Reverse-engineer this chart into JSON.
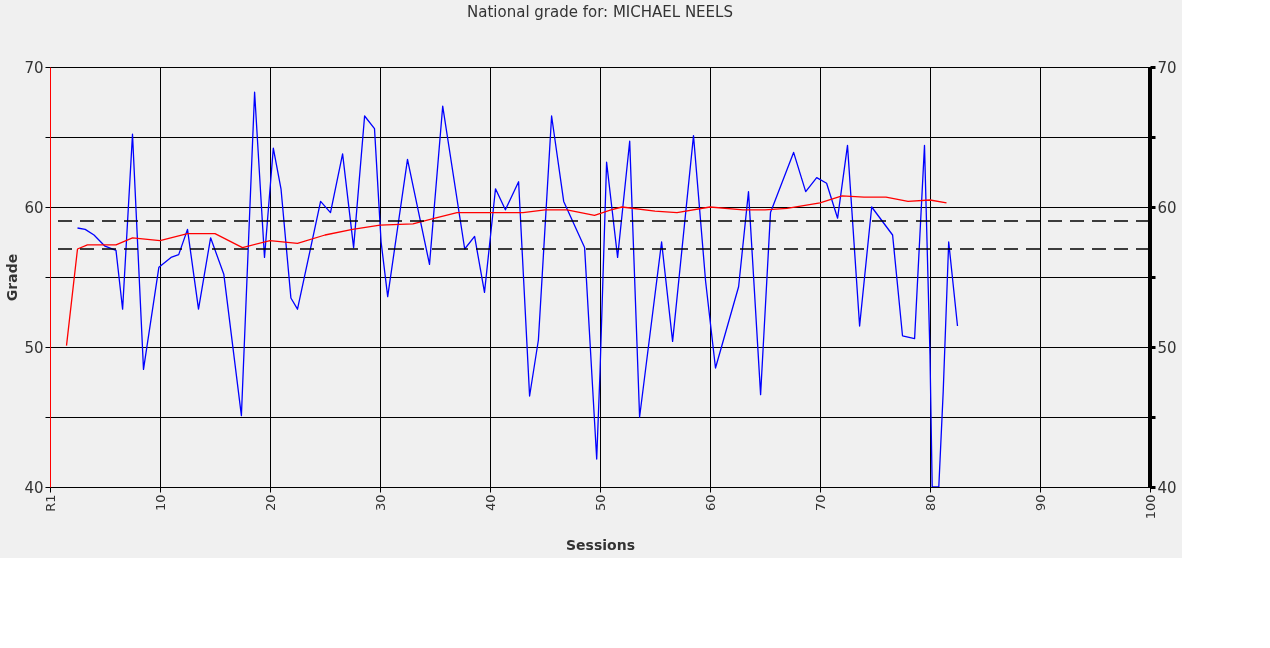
{
  "chart_data": {
    "type": "line",
    "title": "National grade for: MICHAEL NEELS",
    "xlabel": "Sessions",
    "ylabel": "Grade",
    "xlim": [
      0,
      100
    ],
    "xticks": [
      {
        "value": 0,
        "label": "R1"
      },
      10,
      20,
      30,
      40,
      50,
      60,
      70,
      80,
      90,
      100
    ],
    "ylim": [
      40,
      70
    ],
    "yticks": [
      40,
      {
        "value": 45,
        "label": null
      },
      50,
      {
        "value": 55,
        "label": null
      },
      60,
      {
        "value": 65,
        "label": null
      },
      70
    ],
    "y2lim": [
      40,
      70
    ],
    "y2ticks": [
      40,
      {
        "value": 45,
        "label": null
      },
      50,
      {
        "value": 55,
        "label": null
      },
      60,
      {
        "value": 65,
        "label": null
      },
      70
    ],
    "grid": true,
    "line_style": "solid",
    "marker": "none",
    "ref_lines": [
      {
        "axis": "y",
        "value": 59,
        "color": "#000000",
        "line_style": "dashed"
      },
      {
        "axis": "y",
        "value": 57,
        "color": "#000000",
        "line_style": "dashed"
      }
    ],
    "series": [
      {
        "color": "#0000ff",
        "x": [
          2.5,
          3.2,
          4,
          5,
          6,
          6.6,
          7.5,
          8.5,
          9.9,
          11,
          11.7,
          12.5,
          13.5,
          14.6,
          15.8,
          17.4,
          18.6,
          19.5,
          20.3,
          21,
          21.9,
          22.5,
          23.7,
          24.6,
          25.5,
          26.6,
          27.6,
          28.6,
          29.5,
          30.1,
          30.7,
          32.5,
          34.5,
          35.7,
          37.7,
          38.6,
          39.5,
          40.5,
          41.4,
          42.6,
          43.6,
          44.4,
          45.6,
          46.7,
          48.6,
          49.7,
          50,
          50.6,
          51.6,
          52.7,
          53.6,
          55.6,
          56.6,
          58.5,
          59.6,
          60.5,
          62.6,
          63.5,
          64.6,
          65.5,
          67.6,
          68.7,
          69.7,
          70.6,
          71.6,
          72.5,
          73.6,
          74.7,
          76.6,
          77.5,
          78.6,
          79.5,
          80,
          80.2,
          80.8,
          81.2,
          81.7,
          82.5
        ],
        "values": [
          58.5,
          58.4,
          58,
          57.2,
          56.9,
          52.7,
          65.2,
          48.4,
          55.7,
          56.4,
          56.6,
          58.4,
          52.7,
          57.8,
          55.2,
          45.1,
          68.2,
          56.4,
          64.2,
          61.3,
          53.5,
          52.7,
          57.1,
          60.4,
          59.6,
          63.8,
          57.1,
          66.5,
          65.6,
          57.5,
          53.6,
          63.4,
          55.9,
          67.2,
          57,
          57.9,
          53.9,
          61.3,
          59.8,
          61.8,
          46.5,
          50.5,
          66.5,
          60.4,
          57.1,
          42,
          48.2,
          63.2,
          56.4,
          64.7,
          45,
          57.5,
          50.4,
          65.1,
          54.7,
          48.5,
          54.3,
          61.1,
          46.6,
          59.6,
          63.9,
          61.1,
          62.1,
          61.7,
          59.2,
          64.4,
          51.5,
          60,
          58,
          50.8,
          50.6,
          64.4,
          49.4,
          40,
          40,
          46.8,
          57.5,
          51.5
        ]
      },
      {
        "color": "#ff0000",
        "x": [
          1.5,
          2.5,
          3.4,
          6,
          7.5,
          10,
          12.5,
          15,
          17.5,
          20,
          22.5,
          25,
          27.5,
          30,
          33,
          35,
          37,
          40,
          43,
          45,
          47,
          49.5,
          51,
          52,
          55,
          57,
          60,
          63,
          65,
          67,
          70,
          72,
          74,
          76,
          78,
          80,
          81.5
        ],
        "values": [
          50.1,
          57,
          57.3,
          57.3,
          57.8,
          57.6,
          58.1,
          58.1,
          57.1,
          57.6,
          57.4,
          58,
          58.4,
          58.7,
          58.8,
          59.2,
          59.6,
          59.6,
          59.6,
          59.8,
          59.8,
          59.4,
          59.8,
          60,
          59.7,
          59.6,
          60,
          59.8,
          59.8,
          59.9,
          60.3,
          60.8,
          60.7,
          60.7,
          60.4,
          60.5,
          60.3
        ]
      }
    ]
  }
}
